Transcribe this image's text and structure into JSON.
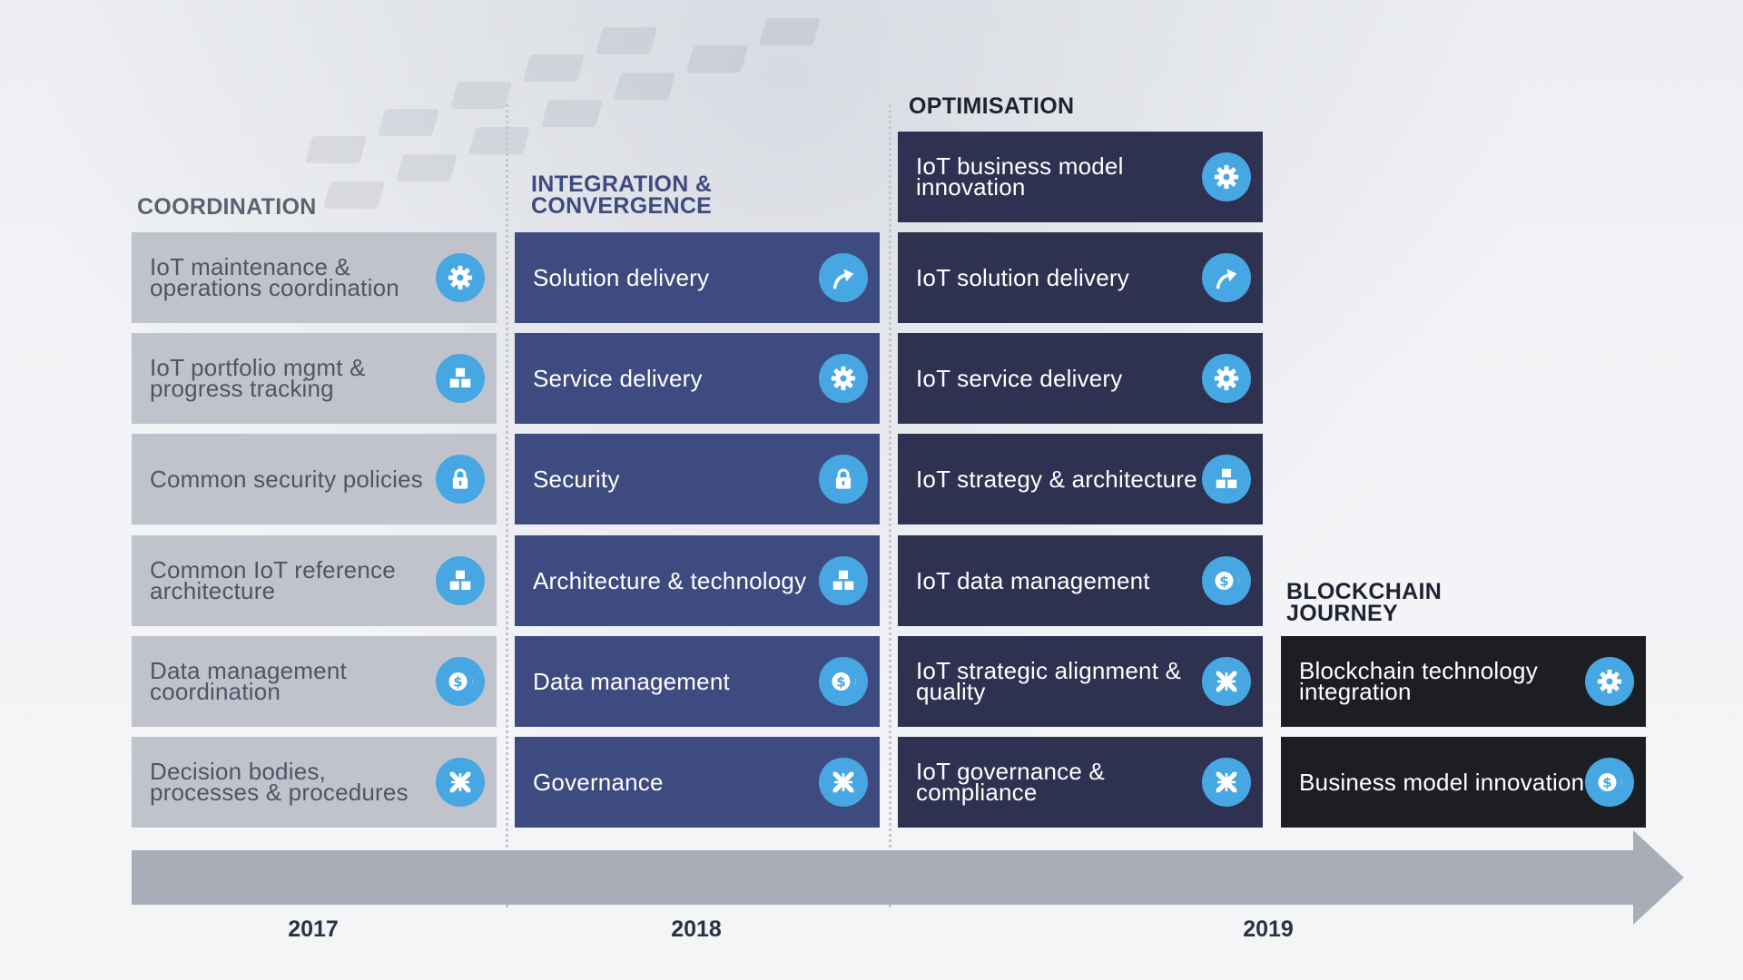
{
  "columns": [
    {
      "title": "Coordination",
      "year": "2017",
      "cards": [
        {
          "label": "IoT maintenance & operations coordination",
          "icon": "gear-icon"
        },
        {
          "label": "IoT portfolio mgmt & progress tracking",
          "icon": "blocks-icon"
        },
        {
          "label": "Common security policies",
          "icon": "lock-icon"
        },
        {
          "label": "Common IoT reference architecture",
          "icon": "blocks-icon"
        },
        {
          "label": "Data management coordination",
          "icon": "coins-icon"
        },
        {
          "label": "Decision bodies, processes & procedures",
          "icon": "arrows-in-icon"
        }
      ]
    },
    {
      "title": "Integration & Convergence",
      "year": "2018",
      "cards": [
        {
          "label": "Solution delivery",
          "icon": "curved-arrow-icon"
        },
        {
          "label": "Service delivery",
          "icon": "gear-icon"
        },
        {
          "label": "Security",
          "icon": "lock-icon"
        },
        {
          "label": "Architecture & technology",
          "icon": "blocks-icon"
        },
        {
          "label": "Data management",
          "icon": "coins-icon"
        },
        {
          "label": "Governance",
          "icon": "arrows-in-icon"
        }
      ]
    },
    {
      "title": "Optimisation",
      "year": "2019",
      "cards": [
        {
          "label": "IoT business model innovation",
          "icon": "gear-icon"
        },
        {
          "label": "IoT solution delivery",
          "icon": "curved-arrow-icon"
        },
        {
          "label": "IoT service delivery",
          "icon": "gear-icon"
        },
        {
          "label": "IoT strategy & architecture",
          "icon": "blocks-icon"
        },
        {
          "label": "IoT data management",
          "icon": "coins-icon"
        },
        {
          "label": "IoT strategic alignment & quality",
          "icon": "arrows-in-icon"
        },
        {
          "label": "IoT governance & compliance",
          "icon": "arrows-in-icon"
        }
      ]
    },
    {
      "title": "Blockchain Journey",
      "cards": [
        {
          "label": "Blockchain technology integration",
          "icon": "gear-icon"
        },
        {
          "label": "Business model innovation",
          "icon": "coins-icon"
        }
      ]
    }
  ],
  "colors": {
    "coordination_card": "#c0c3cc",
    "integration_card": "#3e4b80",
    "optimisation_card": "#2e3250",
    "blockchain_card": "#1d1e24",
    "icon_badge": "#47a7e2",
    "timeline": "#a8adb8"
  }
}
